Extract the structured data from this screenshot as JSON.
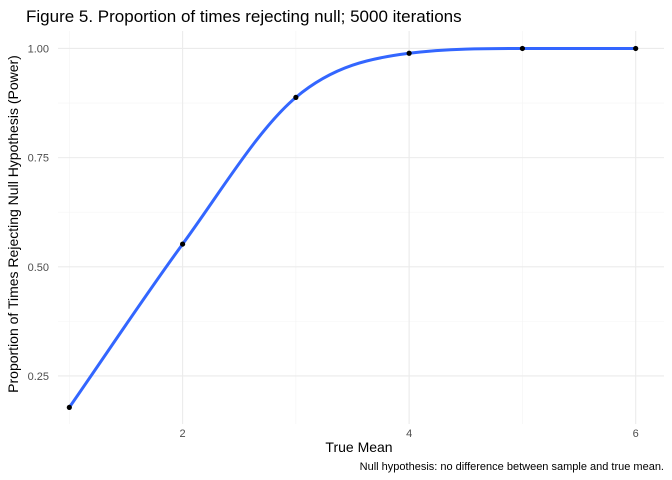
{
  "chart_data": {
    "type": "line",
    "title": "Figure 5. Proportion of times rejecting null; 5000 iterations",
    "xlabel": "True Mean",
    "ylabel": "Proportion of Times Rejecting Null Hypothesis (Power)",
    "caption": "Null hypothesis: no difference between sample and true mean.",
    "x_ticks": [
      2,
      4,
      6
    ],
    "x_tick_labels": [
      "2",
      "4",
      "6"
    ],
    "y_ticks": [
      0.25,
      0.5,
      0.75,
      1.0
    ],
    "y_tick_labels": [
      "0.25",
      "0.50",
      "0.75",
      "1.00"
    ],
    "xlim": [
      0.9,
      6.25
    ],
    "ylim": [
      0.14,
      1.04
    ],
    "grid": true,
    "series": [
      {
        "color": "#3366ff",
        "point_color": "#000000",
        "x": [
          1,
          2,
          3,
          4,
          5,
          6
        ],
        "y": [
          0.178,
          0.552,
          0.888,
          0.989,
          1.0,
          1.0
        ]
      }
    ]
  }
}
